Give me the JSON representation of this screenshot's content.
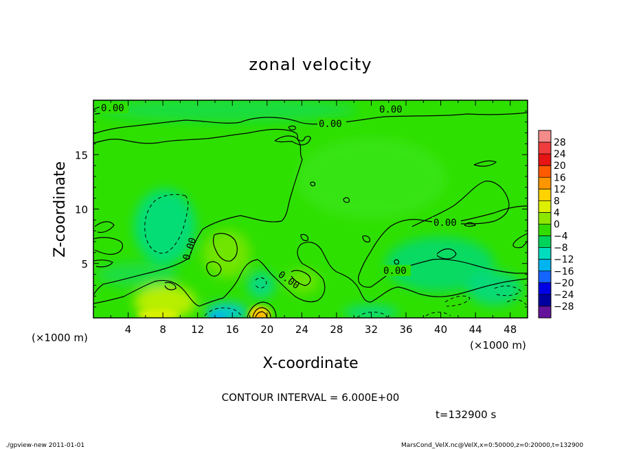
{
  "chart_data": {
    "type": "heatmap",
    "title": "zonal velocity",
    "xlabel": "X-coordinate",
    "ylabel": "Z-coordinate",
    "x_unit_left": "(×1000 m)",
    "x_unit_right": "(×1000 m)",
    "xlim": [
      0,
      50
    ],
    "ylim": [
      0,
      20
    ],
    "x_ticks": [
      4,
      8,
      12,
      16,
      20,
      24,
      28,
      32,
      36,
      40,
      44,
      48
    ],
    "y_ticks": [
      5,
      10,
      15
    ],
    "colorbar": {
      "levels": [
        28,
        24,
        20,
        16,
        12,
        8,
        4,
        0,
        -4,
        -8,
        -12,
        -16,
        -20,
        -24,
        -28
      ],
      "level_labels": [
        "28",
        "24",
        "20",
        "16",
        "12",
        "8",
        "4",
        "0",
        "−4",
        "−8",
        "−12",
        "−16",
        "−20",
        "−24",
        "−28"
      ],
      "colors": [
        "#f58c8c",
        "#f03c3c",
        "#e61414",
        "#ff5a00",
        "#ff9600",
        "#ffd200",
        "#dcf000",
        "#8ce600",
        "#32dc00",
        "#00d25a",
        "#00dcbe",
        "#00b4f0",
        "#1464ff",
        "#0000e6",
        "#0000a0",
        "#64149b"
      ]
    },
    "contour_labels": [
      "0.00",
      "0.00",
      "0.00",
      "0.00",
      "0.00",
      "0.00",
      "0.00",
      "0.00"
    ],
    "contour_interval_text": "CONTOUR INTERVAL = 6.000E+00",
    "time_text": "t=132900 s"
  },
  "footer": {
    "left": "./gpview-new  2011-01-01",
    "right": "MarsCond_VelX.nc@VelX,x=0:50000,z=0:20000,t=132900"
  }
}
